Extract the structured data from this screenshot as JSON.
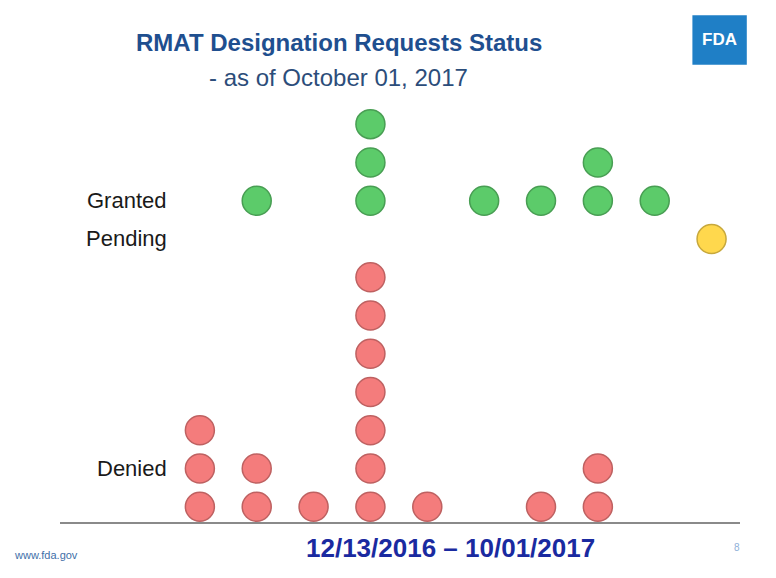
{
  "chart_data": {
    "type": "dot",
    "title": "RMAT Designation Requests Status",
    "subtitle": "- as of October 01, 2017",
    "xlabel": "12/13/2016 – 10/01/2017",
    "logo": "FDA",
    "footer": "www.fda.gov",
    "page": 8,
    "categories": [
      null,
      null,
      null,
      null,
      null,
      null,
      null,
      null,
      null,
      null
    ],
    "series": [
      {
        "name": "Denied",
        "color": "#f47c7c",
        "values": [
          3,
          2,
          1,
          7,
          1,
          0,
          1,
          2,
          0,
          0
        ]
      },
      {
        "name": "Pending",
        "color": "#ffd84d",
        "values": [
          0,
          0,
          0,
          0,
          0,
          0,
          0,
          0,
          0,
          1
        ]
      },
      {
        "name": "Granted",
        "color": "#5ccb6a",
        "values": [
          0,
          1,
          0,
          3,
          0,
          1,
          1,
          2,
          1,
          0
        ]
      }
    ],
    "marker": "circle",
    "tick_labels": false
  }
}
